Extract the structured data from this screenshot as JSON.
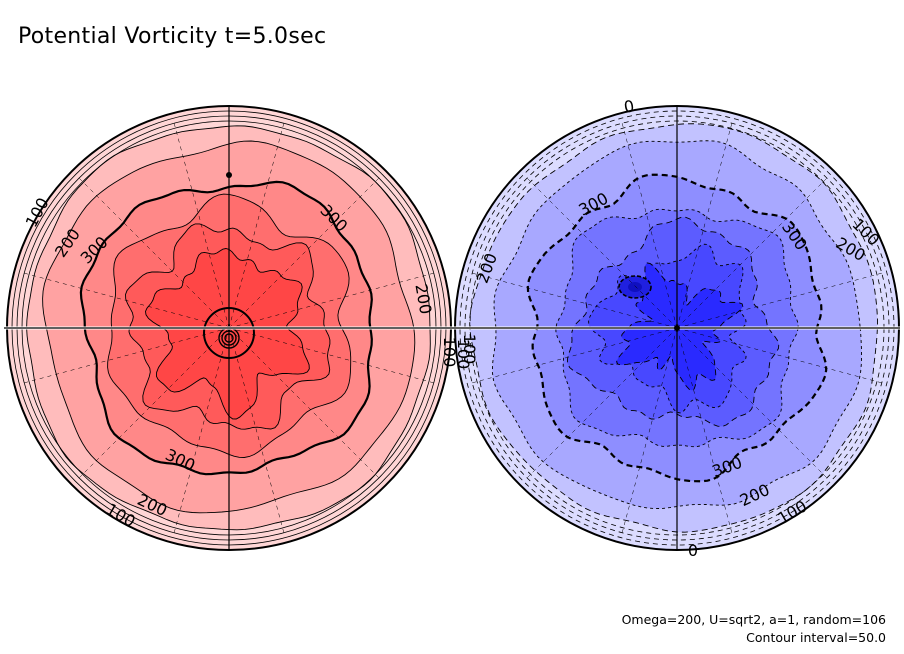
{
  "title": "Potential Vorticity t=5.0sec",
  "footer": {
    "params": "Omega=200, U=sqrt2, a=1, random=106",
    "contour": "Contour interval=50.0"
  },
  "colors": {
    "red_levels": [
      "#ffd6d6",
      "#ffbcbc",
      "#ffa2a2",
      "#ff8888",
      "#ff6e6e",
      "#ff5a5a",
      "#ff4646"
    ],
    "blue_levels": [
      "#dcdcff",
      "#c2c2ff",
      "#a8a8ff",
      "#8e8eff",
      "#7474ff",
      "#5c5cff",
      "#4848ff",
      "#2a2aff"
    ]
  },
  "left_hemisphere": {
    "labels": [
      "100",
      "200",
      "300",
      "300",
      "200",
      "100",
      "300",
      "200",
      "100"
    ]
  },
  "right_hemisphere": {
    "labels": [
      "0",
      "100",
      "200",
      "300",
      "300",
      "200",
      "100",
      "300",
      "200",
      "100",
      "0",
      "100"
    ]
  }
}
